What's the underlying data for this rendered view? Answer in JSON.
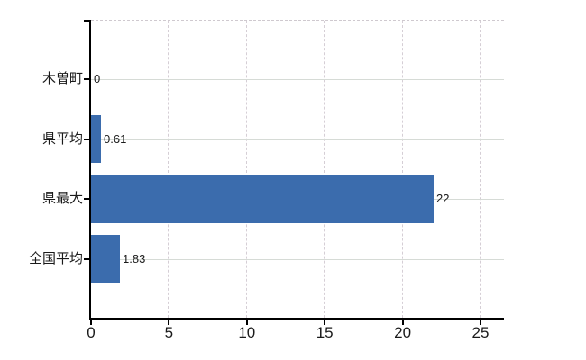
{
  "chart_data": {
    "type": "bar",
    "orientation": "horizontal",
    "title": "",
    "xlabel": "",
    "ylabel": "",
    "categories": [
      "木曽町",
      "県平均",
      "県最大",
      "全国平均"
    ],
    "values": [
      0,
      0.61,
      22,
      1.83
    ],
    "value_labels": [
      "0",
      "0.61",
      "22",
      "1.83"
    ],
    "x_ticks": [
      0,
      5,
      10,
      15,
      20,
      25
    ],
    "x_tick_labels": [
      "0",
      "5",
      "10",
      "15",
      "20",
      "25"
    ],
    "xlim": [
      0,
      26.5
    ],
    "grid": true,
    "legend": false,
    "colors": {
      "bar": "#3b6cad",
      "axis": "#000000",
      "gridline_horizontal": "#d6dbd6",
      "gridline_vertical": "#d5ced5",
      "text": "#1a1a1a",
      "background": "#ffffff"
    }
  }
}
